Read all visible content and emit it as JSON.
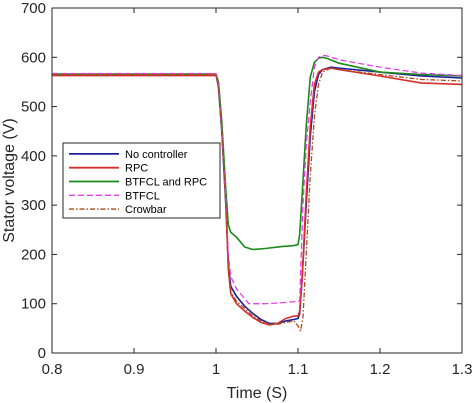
{
  "chart_data": {
    "type": "line",
    "title": "",
    "xlabel": "Time (S)",
    "ylabel": "Stator voltage (V)",
    "xlim": [
      0.8,
      1.3
    ],
    "ylim": [
      0,
      700
    ],
    "xticks": [
      0.8,
      0.9,
      1.0,
      1.1,
      1.2,
      1.3
    ],
    "xtick_labels": [
      "0.8",
      "0.9",
      "1",
      "1.1",
      "1.2",
      "1.3"
    ],
    "yticks": [
      0,
      100,
      200,
      300,
      400,
      500,
      600,
      700
    ],
    "ytick_labels": [
      "0",
      "100",
      "200",
      "300",
      "400",
      "500",
      "600",
      "700"
    ],
    "grid": false,
    "legend_position": "center-left",
    "series": [
      {
        "name": "No controller",
        "color": "#1f1f9e",
        "style": "solid",
        "x": [
          0.8,
          1.0,
          1.003,
          1.007,
          1.012,
          1.015,
          1.018,
          1.025,
          1.035,
          1.045,
          1.055,
          1.065,
          1.075,
          1.085,
          1.095,
          1.1,
          1.102,
          1.105,
          1.11,
          1.115,
          1.12,
          1.125,
          1.13,
          1.14,
          1.15,
          1.2,
          1.25,
          1.3
        ],
        "y": [
          565,
          565,
          540,
          450,
          300,
          180,
          135,
          115,
          95,
          80,
          68,
          60,
          60,
          65,
          68,
          70,
          80,
          150,
          300,
          440,
          530,
          565,
          575,
          580,
          578,
          570,
          562,
          558
        ]
      },
      {
        "name": "RPC",
        "color": "#d62f2f",
        "style": "solid",
        "x": [
          0.8,
          1.0,
          1.003,
          1.007,
          1.012,
          1.015,
          1.018,
          1.025,
          1.035,
          1.045,
          1.055,
          1.065,
          1.075,
          1.085,
          1.095,
          1.1,
          1.102,
          1.105,
          1.11,
          1.115,
          1.12,
          1.125,
          1.13,
          1.14,
          1.15,
          1.2,
          1.25,
          1.3
        ],
        "y": [
          563,
          563,
          545,
          460,
          310,
          170,
          120,
          100,
          85,
          72,
          62,
          57,
          60,
          70,
          75,
          75,
          85,
          150,
          320,
          460,
          545,
          570,
          575,
          578,
          575,
          562,
          548,
          545
        ]
      },
      {
        "name": "BTFCL and RPC",
        "color": "#1a8a1a",
        "style": "solid",
        "x": [
          0.8,
          1.0,
          1.003,
          1.007,
          1.012,
          1.015,
          1.018,
          1.025,
          1.035,
          1.045,
          1.06,
          1.08,
          1.095,
          1.1,
          1.102,
          1.105,
          1.11,
          1.115,
          1.12,
          1.125,
          1.13,
          1.135,
          1.15,
          1.2,
          1.25,
          1.3
        ],
        "y": [
          566,
          566,
          550,
          470,
          330,
          260,
          245,
          235,
          215,
          210,
          212,
          216,
          218,
          220,
          240,
          320,
          460,
          560,
          590,
          598,
          600,
          598,
          588,
          570,
          565,
          562
        ]
      },
      {
        "name": "BTFCL",
        "color": "#e83ee8",
        "style": "dashed",
        "x": [
          0.8,
          1.0,
          1.003,
          1.007,
          1.012,
          1.015,
          1.018,
          1.025,
          1.035,
          1.04,
          1.06,
          1.08,
          1.095,
          1.1,
          1.102,
          1.104,
          1.106,
          1.11,
          1.115,
          1.12,
          1.125,
          1.13,
          1.135,
          1.15,
          1.2,
          1.25,
          1.3
        ],
        "y": [
          567,
          567,
          545,
          450,
          310,
          200,
          155,
          130,
          110,
          100,
          100,
          102,
          104,
          105,
          105,
          200,
          300,
          420,
          510,
          580,
          600,
          604,
          603,
          595,
          580,
          568,
          563
        ]
      },
      {
        "name": "Crowbar",
        "color": "#b04a1a",
        "style": "dashdot",
        "x": [
          0.8,
          1.0,
          1.003,
          1.007,
          1.012,
          1.015,
          1.018,
          1.025,
          1.035,
          1.045,
          1.055,
          1.065,
          1.075,
          1.085,
          1.095,
          1.1,
          1.103,
          1.106,
          1.11,
          1.115,
          1.12,
          1.125,
          1.13,
          1.14,
          1.15,
          1.2,
          1.25,
          1.3
        ],
        "y": [
          565,
          565,
          545,
          455,
          305,
          175,
          125,
          105,
          90,
          75,
          65,
          58,
          58,
          62,
          65,
          55,
          45,
          70,
          200,
          360,
          480,
          545,
          570,
          578,
          575,
          565,
          555,
          552
        ]
      }
    ]
  }
}
